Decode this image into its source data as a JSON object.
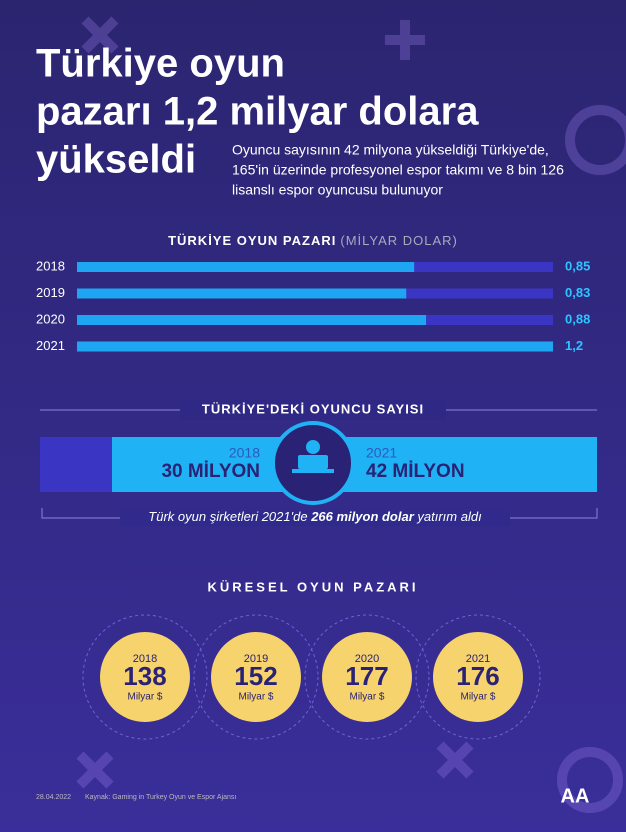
{
  "header": {
    "title_lines": [
      "Türkiye oyun",
      "pazarı 1,2 milyar dolara",
      "yükseldi"
    ],
    "subtitle_lines": [
      "Oyuncu sayısının 42 milyona yükseldiği Türkiye'de,",
      "165'in üzerinde profesyonel espor takımı ve 8 bin 126",
      "lisanslı espor oyuncusu bulunuyor"
    ]
  },
  "chart_data": {
    "type": "bar",
    "orientation": "horizontal",
    "title": "TÜRKİYE OYUN PAZARI",
    "unit": "(MİLYAR DOLAR)",
    "categories": [
      "2018",
      "2019",
      "2020",
      "2021"
    ],
    "values": [
      0.85,
      0.83,
      0.88,
      1.2
    ],
    "value_labels": [
      "0,85",
      "0,83",
      "0,88",
      "1,2"
    ],
    "color": "#1fa6f2",
    "track_color": "#3b35c4",
    "xlim": [
      0,
      1.2
    ]
  },
  "players": {
    "title": "TÜRKİYE'DEKİ OYUNCU SAYISI",
    "items": [
      {
        "year": "2018",
        "label": "30 MİLYON"
      },
      {
        "year": "2021",
        "label": "42 MİLYON"
      }
    ],
    "note": [
      "Türk oyun şirketleri 2021'de ",
      "266 milyon dolar",
      " yatırım aldı"
    ]
  },
  "global": {
    "title": "KÜRESEL OYUN PAZARI",
    "items": [
      {
        "year": "2018",
        "value": "138",
        "unit": "Milyar $"
      },
      {
        "year": "2019",
        "value": "152",
        "unit": "Milyar $"
      },
      {
        "year": "2020",
        "value": "177",
        "unit": "Milyar $"
      },
      {
        "year": "2021",
        "value": "176",
        "unit": "Milyar $"
      }
    ]
  },
  "footer": {
    "date": "28.04.2022",
    "source": "Kaynak: Gaming in Turkey Oyun ve Espor Ajansı",
    "logo": "AA"
  }
}
